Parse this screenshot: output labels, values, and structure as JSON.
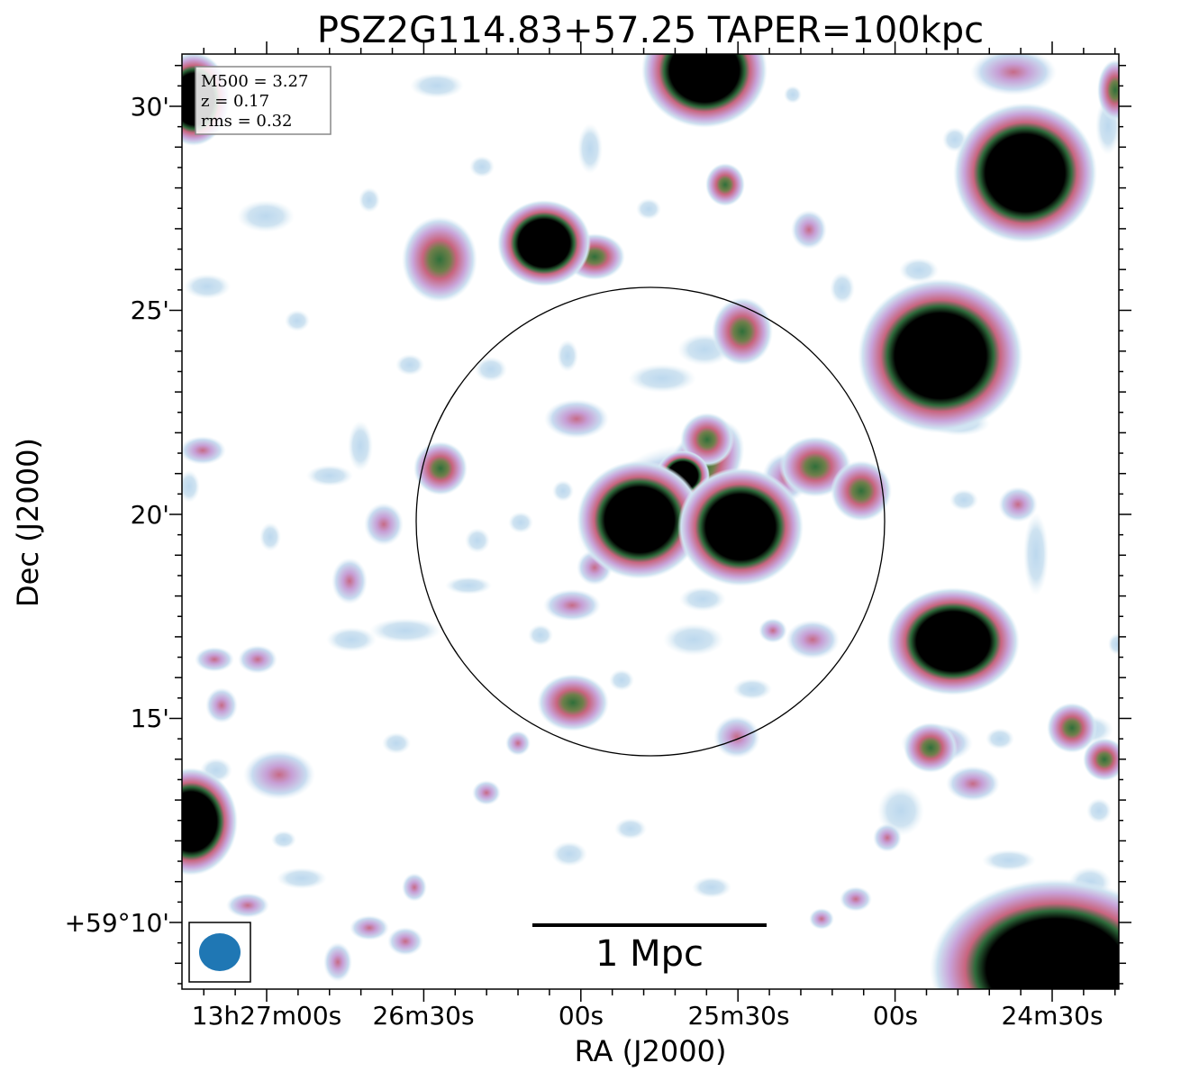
{
  "figure": {
    "title": "PSZ2G114.83+57.25 TAPER=100kpc",
    "xlabel": "RA (J2000)",
    "ylabel": "Dec (J2000)",
    "x_tick_labels": [
      "13h27m00s",
      "26m30s",
      "00s",
      "25m30s",
      "00s",
      "24m30s"
    ],
    "y_tick_labels": [
      "30'",
      "25'",
      "20'",
      "15'",
      "+59°10'"
    ],
    "info_box": [
      "M500 = 3.27",
      "z = 0.17",
      "rms = 0.32"
    ],
    "scalebar_label": "1 Mpc",
    "colors": {
      "background": "#ffffff",
      "frame": "#000000",
      "beam": "#1f77b4",
      "low_emission": "#cfe3f1",
      "mid_emission": "#c79fd5",
      "high_emission": "#c8657f",
      "core_ring": "#3f7a43",
      "core": "#000000"
    }
  }
}
